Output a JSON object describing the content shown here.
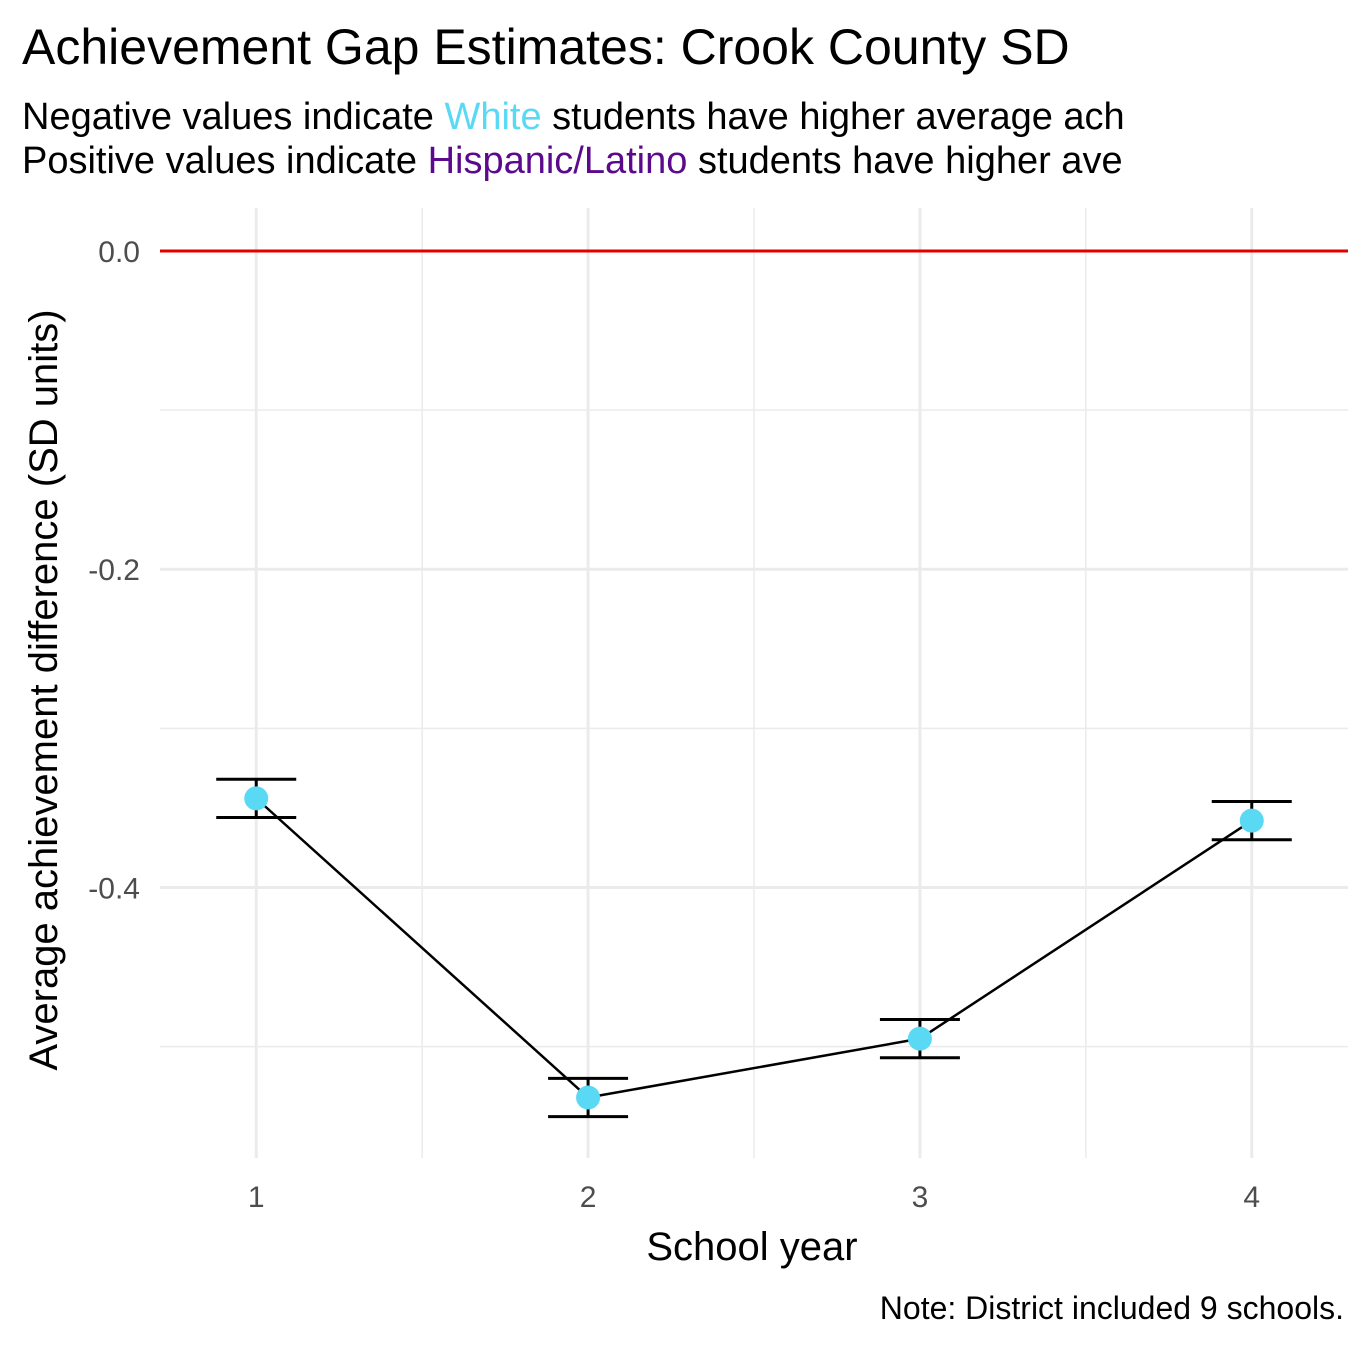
{
  "chart_data": {
    "type": "line",
    "title": "Achievement Gap Estimates: Crook County SD",
    "subtitle": {
      "line1": {
        "prefix": "Negative values indicate ",
        "highlight": "White",
        "suffix": " students have higher average ach"
      },
      "line2": {
        "prefix": "Positive values indicate ",
        "highlight": "Hispanic/Latino",
        "suffix": " students have higher ave"
      }
    },
    "xlabel": "School year",
    "ylabel": "Average achievement difference (SD units)",
    "caption": "Note: District included 9 schools.",
    "x": [
      1,
      2,
      3,
      4
    ],
    "x_ticks": [
      "1",
      "2",
      "3",
      "4"
    ],
    "y_ticks": [
      "0.0",
      "-0.2",
      "-0.4"
    ],
    "y_tick_values": [
      0.0,
      -0.2,
      -0.4
    ],
    "xlim": [
      0.71,
      4.29
    ],
    "ylim": [
      -0.57,
      0.027
    ],
    "series": [
      {
        "values": [
          -0.344,
          -0.532,
          -0.495,
          -0.358
        ],
        "ci_lower": [
          -0.356,
          -0.544,
          -0.507,
          -0.37
        ],
        "ci_upper": [
          -0.332,
          -0.52,
          -0.483,
          -0.346
        ]
      }
    ],
    "reference_line": 0.0,
    "grid": true,
    "colors": {
      "point": "#5ad9f5",
      "white_highlight": "#5ad9f5",
      "hispanic_highlight": "#5c0a8c",
      "reference_line": "#e00000",
      "line": "#000000",
      "grid": "#ebebeb"
    }
  }
}
